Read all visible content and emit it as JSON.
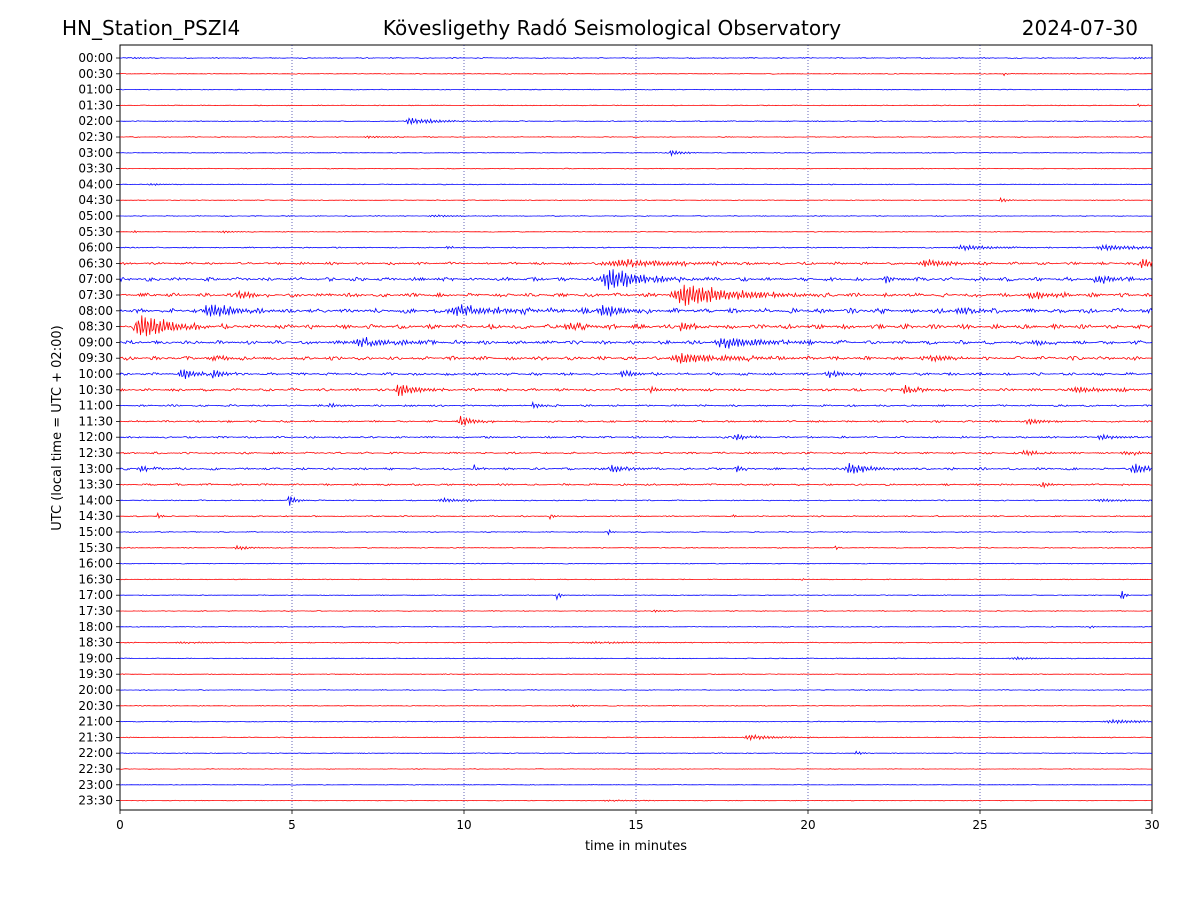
{
  "header": {
    "station": "HN_Station_PSZI4",
    "observatory": "Kövesligethy Radó Seismological Observatory",
    "date": "2024-07-30"
  },
  "chart_data": {
    "type": "line",
    "title": "Kövesligethy Radó Seismological Observatory",
    "xlabel": "time in minutes",
    "ylabel": "UTC (local time = UTC + 02:00)",
    "xlim": [
      0,
      30
    ],
    "x_ticks": [
      0,
      5,
      10,
      15,
      20,
      25,
      30
    ],
    "x_tick_labels": [
      "0",
      "5",
      "10",
      "15",
      "20",
      "25",
      "30"
    ],
    "grid": "vertical dotted at x = 5, 10, 15, 20, 25",
    "colors": {
      "even_rows": "#0000ff",
      "odd_rows": "#ff0000",
      "grid": "#00008b"
    },
    "rows": [
      {
        "label": "00:00",
        "color": "#0000ff",
        "noise": 0.5,
        "events": [
          {
            "t": 0.4,
            "amp": 1.0,
            "dur": 0.3
          },
          {
            "t": 29.5,
            "amp": 0.8,
            "dur": 0.4
          }
        ]
      },
      {
        "label": "00:30",
        "color": "#ff0000",
        "noise": 0.4,
        "events": [
          {
            "t": 25.7,
            "amp": 1.5,
            "dur": 0.1
          }
        ]
      },
      {
        "label": "01:00",
        "color": "#0000ff",
        "noise": 0.4,
        "events": []
      },
      {
        "label": "01:30",
        "color": "#ff0000",
        "noise": 0.4,
        "events": [
          {
            "t": 29.6,
            "amp": 1.5,
            "dur": 0.1
          }
        ]
      },
      {
        "label": "02:00",
        "color": "#0000ff",
        "noise": 0.5,
        "events": [
          {
            "t": 8.4,
            "amp": 4.0,
            "dur": 0.4
          },
          {
            "t": 9.0,
            "amp": 1.5,
            "dur": 1.0
          }
        ]
      },
      {
        "label": "02:30",
        "color": "#ff0000",
        "noise": 0.4,
        "events": [
          {
            "t": 7.2,
            "amp": 1.0,
            "dur": 0.6
          }
        ]
      },
      {
        "label": "03:00",
        "color": "#0000ff",
        "noise": 0.4,
        "events": [
          {
            "t": 16.0,
            "amp": 3.0,
            "dur": 0.3
          }
        ]
      },
      {
        "label": "03:30",
        "color": "#ff0000",
        "noise": 0.4,
        "events": []
      },
      {
        "label": "04:00",
        "color": "#0000ff",
        "noise": 0.4,
        "events": [
          {
            "t": 0.9,
            "amp": 1.0,
            "dur": 0.4
          },
          {
            "t": 10.4,
            "amp": 1.0,
            "dur": 0.1
          }
        ]
      },
      {
        "label": "04:30",
        "color": "#ff0000",
        "noise": 0.4,
        "events": [
          {
            "t": 25.6,
            "amp": 2.5,
            "dur": 0.2
          }
        ]
      },
      {
        "label": "05:00",
        "color": "#0000ff",
        "noise": 0.4,
        "events": [
          {
            "t": 9.1,
            "amp": 1.0,
            "dur": 0.8
          }
        ]
      },
      {
        "label": "05:30",
        "color": "#ff0000",
        "noise": 0.4,
        "events": [
          {
            "t": 0.4,
            "amp": 1.5,
            "dur": 0.1
          },
          {
            "t": 3.0,
            "amp": 1.0,
            "dur": 0.5
          }
        ]
      },
      {
        "label": "06:00",
        "color": "#0000ff",
        "noise": 0.6,
        "events": [
          {
            "t": 9.5,
            "amp": 1.5,
            "dur": 0.3
          },
          {
            "t": 24.5,
            "amp": 2.5,
            "dur": 1.0
          },
          {
            "t": 28.6,
            "amp": 2.5,
            "dur": 1.2
          }
        ]
      },
      {
        "label": "06:30",
        "color": "#ff0000",
        "noise": 1.4,
        "events": [
          {
            "t": 14.5,
            "amp": 3.5,
            "dur": 2.0
          },
          {
            "t": 23.4,
            "amp": 4.0,
            "dur": 0.8
          },
          {
            "t": 29.7,
            "amp": 5.0,
            "dur": 0.5
          }
        ]
      },
      {
        "label": "07:00",
        "color": "#0000ff",
        "noise": 2.0,
        "events": [
          {
            "t": 14.2,
            "amp": 11.0,
            "dur": 1.0
          },
          {
            "t": 22.2,
            "amp": 3.0,
            "dur": 0.4
          },
          {
            "t": 28.4,
            "amp": 5.0,
            "dur": 0.6
          }
        ]
      },
      {
        "label": "07:30",
        "color": "#ff0000",
        "noise": 2.0,
        "events": [
          {
            "t": 3.5,
            "amp": 4.0,
            "dur": 0.5
          },
          {
            "t": 16.4,
            "amp": 11.0,
            "dur": 1.5
          },
          {
            "t": 26.5,
            "amp": 4.0,
            "dur": 0.6
          }
        ]
      },
      {
        "label": "08:00",
        "color": "#0000ff",
        "noise": 2.6,
        "events": [
          {
            "t": 2.6,
            "amp": 7.0,
            "dur": 0.8
          },
          {
            "t": 9.8,
            "amp": 5.0,
            "dur": 1.5
          },
          {
            "t": 14.0,
            "amp": 6.0,
            "dur": 0.6
          },
          {
            "t": 24.4,
            "amp": 4.0,
            "dur": 0.6
          }
        ]
      },
      {
        "label": "08:30",
        "color": "#ff0000",
        "noise": 2.4,
        "events": [
          {
            "t": 0.6,
            "amp": 13.0,
            "dur": 0.8
          },
          {
            "t": 13.0,
            "amp": 4.0,
            "dur": 0.6
          },
          {
            "t": 16.3,
            "amp": 5.0,
            "dur": 0.4
          }
        ]
      },
      {
        "label": "09:00",
        "color": "#0000ff",
        "noise": 2.0,
        "events": [
          {
            "t": 7.0,
            "amp": 4.0,
            "dur": 1.2
          },
          {
            "t": 17.5,
            "amp": 6.0,
            "dur": 1.2
          },
          {
            "t": 26.6,
            "amp": 3.0,
            "dur": 0.6
          }
        ]
      },
      {
        "label": "09:30",
        "color": "#ff0000",
        "noise": 2.0,
        "events": [
          {
            "t": 2.7,
            "amp": 3.0,
            "dur": 0.6
          },
          {
            "t": 16.3,
            "amp": 5.0,
            "dur": 1.5
          },
          {
            "t": 23.6,
            "amp": 4.0,
            "dur": 0.5
          }
        ]
      },
      {
        "label": "10:00",
        "color": "#0000ff",
        "noise": 1.4,
        "events": [
          {
            "t": 1.8,
            "amp": 5.0,
            "dur": 0.5
          },
          {
            "t": 2.7,
            "amp": 4.0,
            "dur": 0.4
          },
          {
            "t": 14.6,
            "amp": 4.0,
            "dur": 0.4
          },
          {
            "t": 20.6,
            "amp": 4.0,
            "dur": 0.4
          }
        ]
      },
      {
        "label": "10:30",
        "color": "#ff0000",
        "noise": 1.4,
        "events": [
          {
            "t": 8.1,
            "amp": 7.0,
            "dur": 0.5
          },
          {
            "t": 15.4,
            "amp": 3.0,
            "dur": 0.3
          },
          {
            "t": 22.8,
            "amp": 5.0,
            "dur": 0.4
          },
          {
            "t": 27.8,
            "amp": 3.0,
            "dur": 1.0
          }
        ]
      },
      {
        "label": "11:00",
        "color": "#0000ff",
        "noise": 1.0,
        "events": [
          {
            "t": 6.1,
            "amp": 3.0,
            "dur": 0.2
          },
          {
            "t": 12.0,
            "amp": 3.0,
            "dur": 0.3
          }
        ]
      },
      {
        "label": "11:30",
        "color": "#ff0000",
        "noise": 1.0,
        "events": [
          {
            "t": 9.9,
            "amp": 5.0,
            "dur": 0.4
          },
          {
            "t": 26.4,
            "amp": 3.5,
            "dur": 0.4
          }
        ]
      },
      {
        "label": "12:00",
        "color": "#0000ff",
        "noise": 1.0,
        "events": [
          {
            "t": 17.9,
            "amp": 4.0,
            "dur": 0.3
          },
          {
            "t": 28.5,
            "amp": 2.5,
            "dur": 0.6
          }
        ]
      },
      {
        "label": "12:30",
        "color": "#ff0000",
        "noise": 1.0,
        "events": [
          {
            "t": 26.3,
            "amp": 3.0,
            "dur": 0.5
          },
          {
            "t": 29.2,
            "amp": 2.0,
            "dur": 0.6
          }
        ]
      },
      {
        "label": "13:00",
        "color": "#0000ff",
        "noise": 1.2,
        "events": [
          {
            "t": 0.6,
            "amp": 3.0,
            "dur": 0.4
          },
          {
            "t": 10.3,
            "amp": 4.0,
            "dur": 0.1
          },
          {
            "t": 14.3,
            "amp": 4.0,
            "dur": 0.5
          },
          {
            "t": 17.9,
            "amp": 4.0,
            "dur": 0.2
          },
          {
            "t": 21.2,
            "amp": 6.0,
            "dur": 0.6
          },
          {
            "t": 29.5,
            "amp": 5.0,
            "dur": 0.6
          }
        ]
      },
      {
        "label": "13:30",
        "color": "#ff0000",
        "noise": 1.0,
        "events": [
          {
            "t": 26.8,
            "amp": 4.0,
            "dur": 0.2
          }
        ]
      },
      {
        "label": "14:00",
        "color": "#0000ff",
        "noise": 0.6,
        "events": [
          {
            "t": 4.9,
            "amp": 6.0,
            "dur": 0.2
          },
          {
            "t": 9.4,
            "amp": 2.0,
            "dur": 0.6
          },
          {
            "t": 28.5,
            "amp": 1.5,
            "dur": 0.8
          }
        ]
      },
      {
        "label": "14:30",
        "color": "#ff0000",
        "noise": 0.6,
        "events": [
          {
            "t": 1.1,
            "amp": 3.0,
            "dur": 0.1
          },
          {
            "t": 12.5,
            "amp": 3.0,
            "dur": 0.1
          },
          {
            "t": 17.8,
            "amp": 2.0,
            "dur": 0.1
          }
        ]
      },
      {
        "label": "15:00",
        "color": "#0000ff",
        "noise": 0.5,
        "events": [
          {
            "t": 14.2,
            "amp": 2.5,
            "dur": 0.1
          }
        ]
      },
      {
        "label": "15:30",
        "color": "#ff0000",
        "noise": 0.5,
        "events": [
          {
            "t": 3.4,
            "amp": 2.0,
            "dur": 0.5
          },
          {
            "t": 20.8,
            "amp": 2.0,
            "dur": 0.1
          }
        ]
      },
      {
        "label": "16:00",
        "color": "#0000ff",
        "noise": 0.4,
        "events": []
      },
      {
        "label": "16:30",
        "color": "#ff0000",
        "noise": 0.4,
        "events": [
          {
            "t": 19.8,
            "amp": 1.5,
            "dur": 0.1
          }
        ]
      },
      {
        "label": "17:00",
        "color": "#0000ff",
        "noise": 0.4,
        "events": [
          {
            "t": 12.7,
            "amp": 5.0,
            "dur": 0.1
          },
          {
            "t": 29.1,
            "amp": 7.0,
            "dur": 0.1
          }
        ]
      },
      {
        "label": "17:30",
        "color": "#ff0000",
        "noise": 0.4,
        "events": [
          {
            "t": 15.5,
            "amp": 1.5,
            "dur": 0.2
          }
        ]
      },
      {
        "label": "18:00",
        "color": "#0000ff",
        "noise": 0.4,
        "events": [
          {
            "t": 28.2,
            "amp": 2.0,
            "dur": 0.1
          }
        ]
      },
      {
        "label": "18:30",
        "color": "#ff0000",
        "noise": 0.5,
        "events": [
          {
            "t": 1.8,
            "amp": 1.0,
            "dur": 1.0
          },
          {
            "t": 13.8,
            "amp": 1.0,
            "dur": 2.0
          }
        ]
      },
      {
        "label": "19:00",
        "color": "#0000ff",
        "noise": 0.4,
        "events": [
          {
            "t": 26.0,
            "amp": 1.5,
            "dur": 0.6
          }
        ]
      },
      {
        "label": "19:30",
        "color": "#ff0000",
        "noise": 0.4,
        "events": []
      },
      {
        "label": "20:00",
        "color": "#0000ff",
        "noise": 0.4,
        "events": [
          {
            "t": 21.7,
            "amp": 1.0,
            "dur": 0.1
          }
        ]
      },
      {
        "label": "20:30",
        "color": "#ff0000",
        "noise": 0.4,
        "events": [
          {
            "t": 13.1,
            "amp": 1.5,
            "dur": 0.2
          }
        ]
      },
      {
        "label": "21:00",
        "color": "#0000ff",
        "noise": 0.4,
        "events": [
          {
            "t": 28.8,
            "amp": 2.0,
            "dur": 1.0
          }
        ]
      },
      {
        "label": "21:30",
        "color": "#ff0000",
        "noise": 0.4,
        "events": [
          {
            "t": 18.3,
            "amp": 2.5,
            "dur": 0.8
          }
        ]
      },
      {
        "label": "22:00",
        "color": "#0000ff",
        "noise": 0.4,
        "events": [
          {
            "t": 21.4,
            "amp": 2.0,
            "dur": 0.2
          }
        ]
      },
      {
        "label": "22:30",
        "color": "#ff0000",
        "noise": 0.3,
        "events": []
      },
      {
        "label": "23:00",
        "color": "#0000ff",
        "noise": 0.3,
        "events": []
      },
      {
        "label": "23:30",
        "color": "#ff0000",
        "noise": 0.3,
        "events": [
          {
            "t": 14.2,
            "amp": 0.8,
            "dur": 1.0
          }
        ]
      }
    ]
  }
}
